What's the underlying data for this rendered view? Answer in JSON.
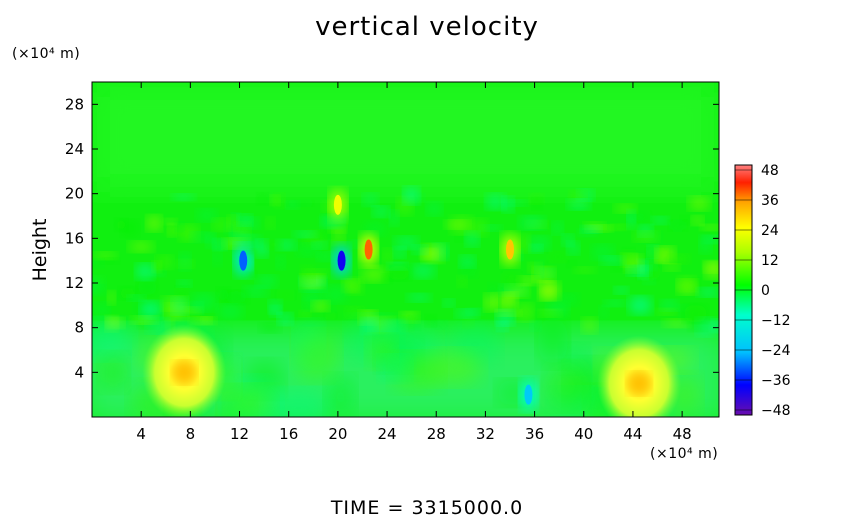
{
  "chart_data": {
    "type": "heatmap",
    "title": "vertical velocity",
    "ylabel": "Height",
    "xlabel": "",
    "x_units": "(×10⁴ m)",
    "y_units": "(×10⁴ m)",
    "xlim": [
      0,
      51
    ],
    "ylim": [
      0,
      30
    ],
    "x_ticks": [
      "4",
      "8",
      "12",
      "16",
      "20",
      "24",
      "28",
      "32",
      "36",
      "40",
      "44",
      "48"
    ],
    "y_ticks": [
      "4",
      "8",
      "12",
      "16",
      "20",
      "24",
      "28"
    ],
    "colorbar": {
      "min": -48,
      "max": 48,
      "ticks": [
        "48",
        "36",
        "24",
        "12",
        "0",
        "−12",
        "−24",
        "−36",
        "−48"
      ],
      "colors": [
        "#6a0dad",
        "#0000ff",
        "#00bfff",
        "#00ffcc",
        "#00ff00",
        "#ffff00",
        "#ffa500",
        "#ff0000",
        "#ff8080"
      ]
    },
    "features": [
      {
        "x": 7.5,
        "y": 4,
        "value": 22,
        "note": "warm lobe"
      },
      {
        "x": 44.5,
        "y": 3,
        "value": 24,
        "note": "warm lobe"
      },
      {
        "x": 12.3,
        "y": 14,
        "value": -30
      },
      {
        "x": 20.3,
        "y": 14,
        "value": -38
      },
      {
        "x": 22.5,
        "y": 15,
        "value": 38
      },
      {
        "x": 34,
        "y": 15,
        "value": 30
      },
      {
        "x": 35.5,
        "y": 2,
        "value": -22
      },
      {
        "x": 20,
        "y": 19,
        "value": 22
      }
    ],
    "grid": false,
    "legend": "right"
  },
  "footer": {
    "label": "TIME",
    "equals": "=",
    "value": "3315000.0"
  }
}
